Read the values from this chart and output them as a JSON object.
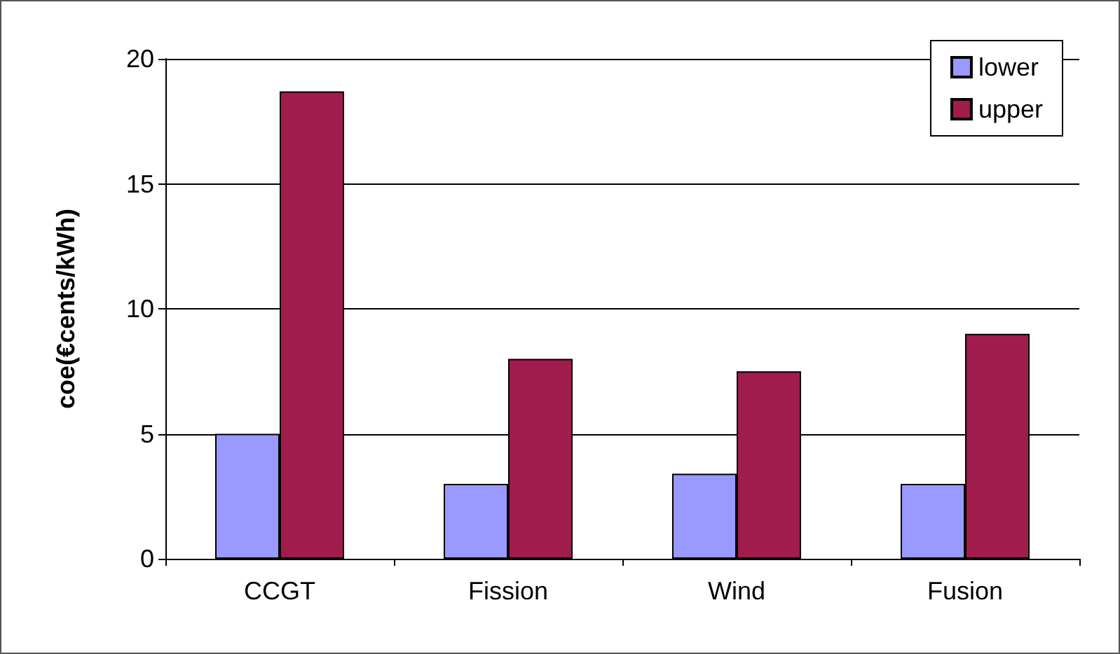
{
  "chart_data": {
    "type": "bar",
    "ylabel": "coe(€cents/kWh)",
    "categories": [
      "CCGT",
      "Fission",
      "Wind",
      "Fusion"
    ],
    "series": [
      {
        "name": "lower",
        "color": "#9999ff",
        "values": [
          5,
          3,
          3.4,
          3
        ]
      },
      {
        "name": "upper",
        "color": "#a01c4c",
        "values": [
          18.7,
          8,
          7.5,
          9
        ]
      }
    ],
    "ylim": [
      0,
      20
    ],
    "yticks": [
      0,
      5,
      10,
      15,
      20
    ],
    "grid": "y",
    "legend": "top right"
  }
}
